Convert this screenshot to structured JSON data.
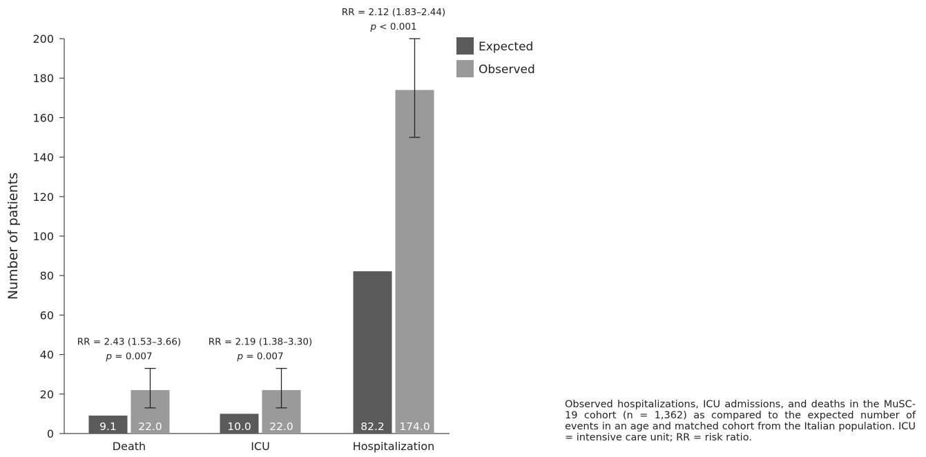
{
  "chart_data": {
    "type": "bar",
    "categories": [
      "Death",
      "ICU",
      "Hospitalization"
    ],
    "series": [
      {
        "name": "Expected",
        "values": [
          9.1,
          10.0,
          82.2
        ],
        "labels": [
          "9.1",
          "10.0",
          "82.2"
        ],
        "color": "#5a5a5a"
      },
      {
        "name": "Observed",
        "values": [
          22.0,
          22.0,
          174.0
        ],
        "labels": [
          "22.0",
          "22.0",
          "174.0"
        ],
        "color": "#9a9a9a",
        "error_bars": [
          [
            13,
            33
          ],
          [
            13,
            33
          ],
          [
            150,
            200
          ]
        ]
      }
    ],
    "annotations": [
      {
        "rr": "RR = 2.43 (1.53–3.66)",
        "p_prefix": "p",
        "p_suffix": " = 0.007"
      },
      {
        "rr": "RR = 2.19 (1.38–3.30)",
        "p_prefix": "p",
        "p_suffix": " = 0.007"
      },
      {
        "rr": "RR = 2.12 (1.83–2.44)",
        "p_prefix": "p",
        "p_suffix": " < 0.001"
      }
    ],
    "ylabel": "Number of patients",
    "ylim": [
      0,
      200
    ],
    "yticks": [
      0,
      20,
      40,
      60,
      80,
      100,
      120,
      140,
      160,
      180,
      200
    ],
    "legend_position": "top-right",
    "grid": false
  },
  "caption": "Observed hospitalizations, ICU admissions, and deaths in the MuSC-19 cohort (n = 1,362) as compared to the expected number of events in an age and matched cohort from the Italian population. ICU = intensive care unit; RR = risk ratio."
}
